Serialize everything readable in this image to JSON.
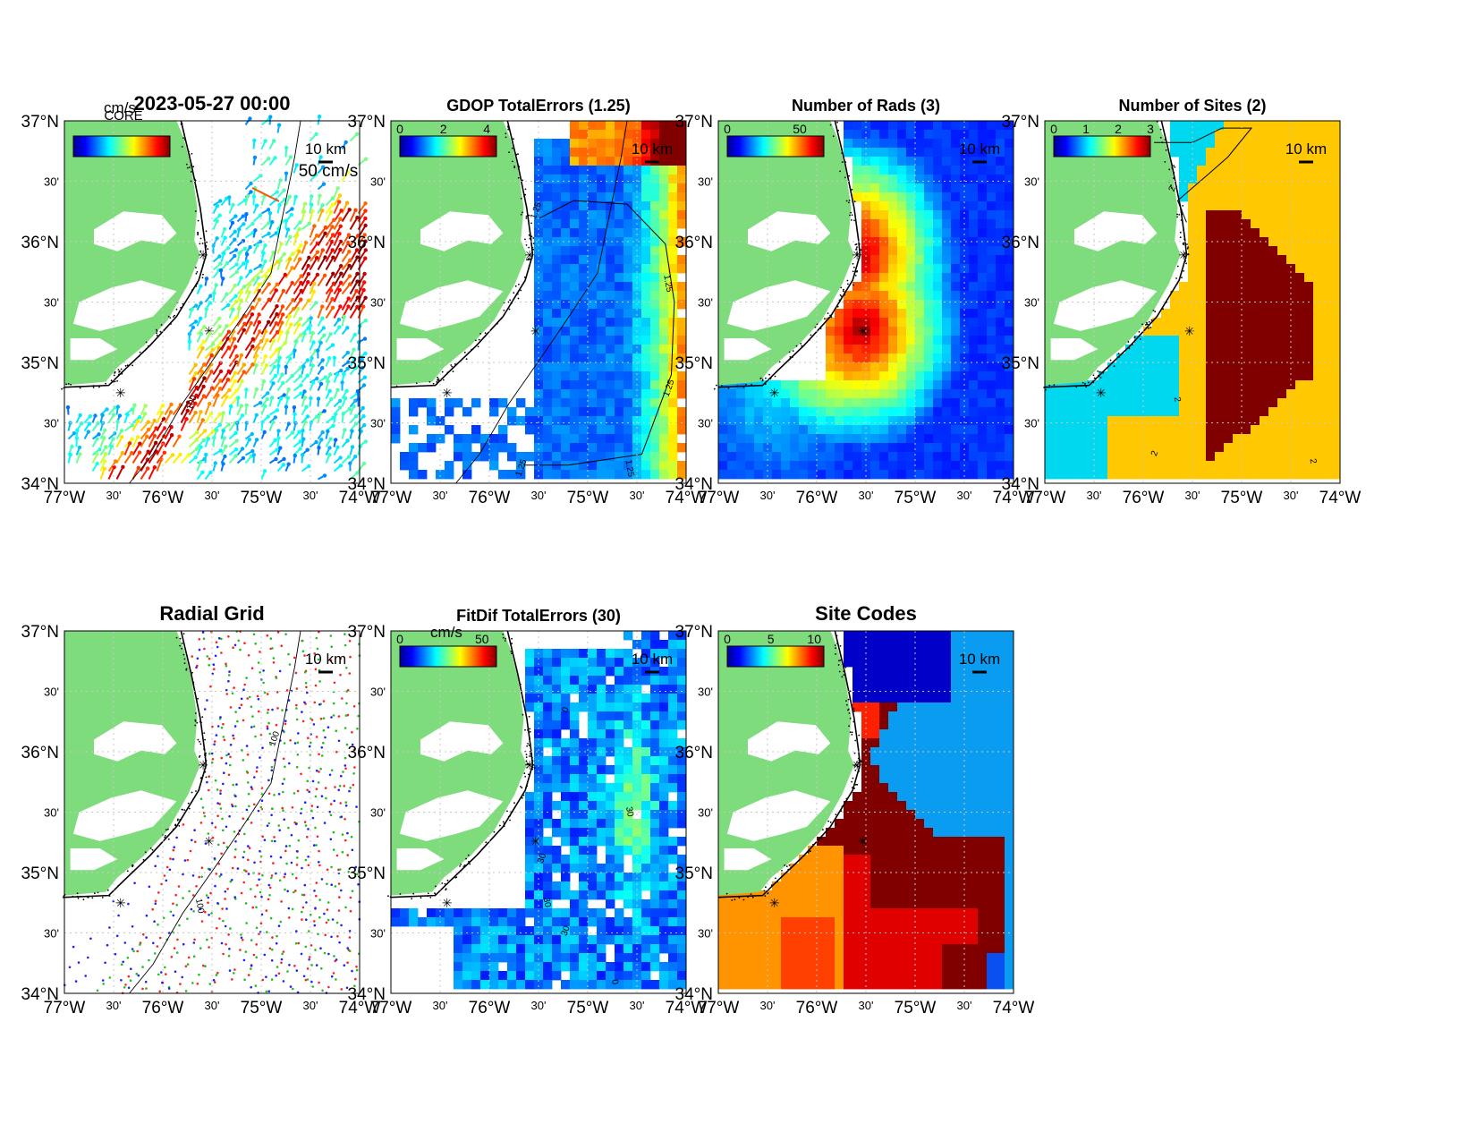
{
  "figure": {
    "lat_ticks": [
      "37°N",
      "30'",
      "36°N",
      "30'",
      "35°N",
      "30'",
      "34°N"
    ],
    "lon_ticks": [
      "77°W",
      "30'",
      "76°W",
      "30'",
      "75°W",
      "30'",
      "74°W"
    ],
    "scale_bar": "10 km",
    "colors": {
      "land": "#7fdc7c",
      "coast": "#000000",
      "site_marker": "#ff2020",
      "grid": "#c8c8c8"
    }
  },
  "chart_data": [
    {
      "type": "heatmap",
      "id": "currents",
      "title": "2023-05-27 00:00",
      "colorbar_unit": "cm/s",
      "overlay_text": "CORE",
      "vector_scale_label": "50 cm/s",
      "contour_labels": [
        "100"
      ],
      "xlim": [
        -77,
        -74
      ],
      "ylim": [
        34,
        37
      ]
    },
    {
      "type": "heatmap",
      "id": "gdop",
      "title": "GDOP TotalErrors (1.25)",
      "colorbar_ticks": [
        "0",
        "2",
        "4"
      ],
      "contour_labels": [
        "1.25",
        "1.25",
        "1.25",
        "1.25",
        "1.25"
      ],
      "xlim": [
        -77,
        -74
      ],
      "ylim": [
        34,
        37
      ]
    },
    {
      "type": "heatmap",
      "id": "nrads",
      "title": "Number of Rads (3)",
      "colorbar_ticks": [
        "0",
        "50"
      ],
      "xlim": [
        -77,
        -74
      ],
      "ylim": [
        34,
        37
      ]
    },
    {
      "type": "heatmap",
      "id": "nsites",
      "title": "Number of Sites (2)",
      "colorbar_ticks": [
        "0",
        "1",
        "2",
        "3"
      ],
      "contour_labels": [
        "2",
        "2",
        "2",
        "2"
      ],
      "xlim": [
        -77,
        -74
      ],
      "ylim": [
        34,
        37
      ]
    },
    {
      "type": "scatter",
      "id": "radgrid",
      "title": "Radial Grid",
      "contour_labels": [
        "100",
        "100"
      ],
      "series": [
        {
          "color": "#ff2020",
          "site": [
            -75.76,
            35.91
          ]
        },
        {
          "color": "#20c020",
          "site": [
            -75.52,
            35.25
          ]
        },
        {
          "color": "#2020ff",
          "site": [
            -76.52,
            34.69
          ]
        }
      ],
      "xlim": [
        -77,
        -74
      ],
      "ylim": [
        34,
        37
      ]
    },
    {
      "type": "heatmap",
      "id": "fitdif",
      "title": "FitDif TotalErrors (30)",
      "colorbar_unit": "cm/s",
      "colorbar_ticks": [
        "0",
        "50"
      ],
      "contour_labels": [
        "30",
        "30",
        "30",
        "30",
        "0",
        "0"
      ],
      "xlim": [
        -77,
        -74
      ],
      "ylim": [
        34,
        37
      ]
    },
    {
      "type": "heatmap",
      "id": "sitecodes",
      "title": "Site Codes",
      "colorbar_ticks": [
        "0",
        "5",
        "10"
      ],
      "xlim": [
        -77,
        -74
      ],
      "ylim": [
        34,
        37
      ]
    }
  ]
}
